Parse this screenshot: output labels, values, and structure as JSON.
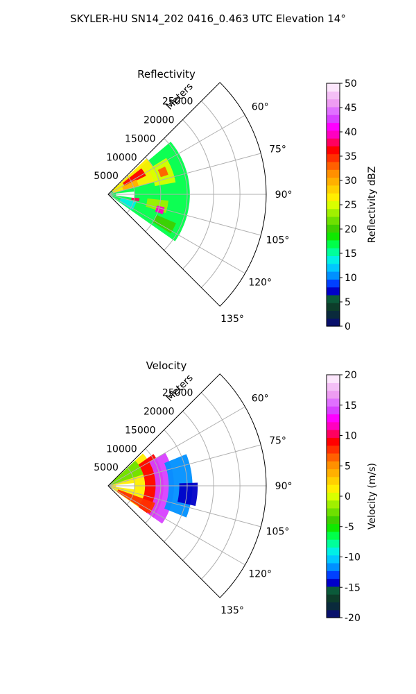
{
  "title": "SKYLER-HU  SN14_202  0416_0.463 UTC Elevation 14°",
  "chart_data": [
    {
      "type": "heatmap",
      "projection": "polar-sector",
      "title": "Reflectivity",
      "radial_label": "Meters",
      "radial_ticks": [
        5000,
        10000,
        15000,
        20000,
        25000
      ],
      "rlim": [
        0,
        30000
      ],
      "angle_ticks": [
        "60°",
        "75°",
        "90°",
        "105°",
        "120°",
        "135°"
      ],
      "theta_range_deg": [
        45,
        135
      ],
      "grid": true,
      "colorbar": {
        "label": "Reflectivity dBZ",
        "range": [
          0,
          50
        ],
        "ticks": [
          "0",
          "5",
          "10",
          "15",
          "20",
          "25",
          "30",
          "35",
          "40",
          "45",
          "50"
        ],
        "colors": [
          "#08106b",
          "#0a2a3c",
          "#0d3d2a",
          "#0b5a3a",
          "#0000c8",
          "#0040ff",
          "#0090ff",
          "#00c8ff",
          "#00f0e6",
          "#00ff9a",
          "#00ff4a",
          "#10e800",
          "#3ed000",
          "#6ee000",
          "#a0f000",
          "#d8ff00",
          "#ffee00",
          "#ffd000",
          "#ffb000",
          "#ff9000",
          "#ff6000",
          "#ff3000",
          "#ff0000",
          "#ff0060",
          "#ff00c0",
          "#ff00ff",
          "#d840ff",
          "#e070ff",
          "#ee9cf2",
          "#f4bff6",
          "#fce6fc"
        ]
      },
      "regions": [
        {
          "theta": [
            50,
            125
          ],
          "r": [
            0,
            15500
          ],
          "dbz": 17
        },
        {
          "theta": [
            47,
            75
          ],
          "r": [
            1000,
            10000
          ],
          "dbz": 26
        },
        {
          "theta": [
            52,
            64
          ],
          "r": [
            3500,
            8000
          ],
          "dbz": 37
        },
        {
          "theta": [
            62,
            76
          ],
          "r": [
            3000,
            6000
          ],
          "dbz": 30
        },
        {
          "theta": [
            58,
            80
          ],
          "r": [
            9000,
            13000
          ],
          "dbz": 25
        },
        {
          "theta": [
            64,
            72
          ],
          "r": [
            10500,
            12000
          ],
          "dbz": 33
        },
        {
          "theta": [
            96,
            108
          ],
          "r": [
            7500,
            11500
          ],
          "dbz": 24
        },
        {
          "theta": [
            103,
            110
          ],
          "r": [
            9500,
            11000
          ],
          "dbz": 40
        },
        {
          "theta": [
            97,
            103
          ],
          "r": [
            4500,
            6000
          ],
          "dbz": 38
        },
        {
          "theta": [
            84,
            98
          ],
          "r": [
            1500,
            5000
          ],
          "dbz": -1
        },
        {
          "theta": [
            104,
            123
          ],
          "r": [
            2500,
            5500
          ],
          "dbz": 14
        },
        {
          "theta": [
            113,
            122
          ],
          "r": [
            10000,
            14000
          ],
          "dbz": 20
        }
      ]
    },
    {
      "type": "heatmap",
      "projection": "polar-sector",
      "title": "Velocity",
      "radial_label": "Meters",
      "radial_ticks": [
        5000,
        10000,
        15000,
        20000,
        25000
      ],
      "rlim": [
        0,
        30000
      ],
      "angle_ticks": [
        "60°",
        "75°",
        "90°",
        "105°",
        "120°",
        "135°"
      ],
      "theta_range_deg": [
        45,
        135
      ],
      "grid": true,
      "colorbar": {
        "label": "Velocity (m/s)",
        "range": [
          -20,
          20
        ],
        "ticks": [
          "-20",
          "-15",
          "-10",
          "-5",
          "0",
          "5",
          "10",
          "15",
          "20"
        ],
        "colors": [
          "#08106b",
          "#0a2a3c",
          "#0d3d2a",
          "#0b5a3a",
          "#0000c8",
          "#0040ff",
          "#0090ff",
          "#00c8ff",
          "#00f0e6",
          "#00ff9a",
          "#00ff4a",
          "#10e800",
          "#3ed000",
          "#6ee000",
          "#a0f000",
          "#d8ff00",
          "#ffee00",
          "#ffd000",
          "#ffb000",
          "#ff9000",
          "#ff6000",
          "#ff3000",
          "#ff0000",
          "#ff0060",
          "#ff00c0",
          "#ff00ff",
          "#d840ff",
          "#e070ff",
          "#ee9cf2",
          "#f4bff6",
          "#fce6fc"
        ]
      },
      "regions": [
        {
          "theta": [
            47,
            125
          ],
          "r": [
            0,
            9000
          ],
          "v": 1
        },
        {
          "theta": [
            47,
            72
          ],
          "r": [
            0,
            7000
          ],
          "v": -3
        },
        {
          "theta": [
            55,
            125
          ],
          "r": [
            7000,
            10500
          ],
          "v": 9
        },
        {
          "theta": [
            60,
            125
          ],
          "r": [
            9000,
            12500
          ],
          "v": 14
        },
        {
          "theta": [
            68,
            112
          ],
          "r": [
            11500,
            16000
          ],
          "v": -11
        },
        {
          "theta": [
            88,
            103
          ],
          "r": [
            13500,
            17000
          ],
          "v": -14
        },
        {
          "theta": [
            84,
            98
          ],
          "r": [
            1500,
            5000
          ],
          "v": -99
        },
        {
          "theta": [
            110,
            124
          ],
          "r": [
            2000,
            9500
          ],
          "v": 8
        }
      ]
    }
  ]
}
